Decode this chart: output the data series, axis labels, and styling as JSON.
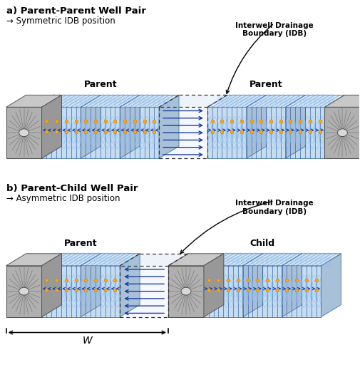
{
  "title_a": "a) Parent-Parent Well Pair",
  "subtitle_a": "→ Symmetric IDB position",
  "title_b": "b) Parent-Child Well Pair",
  "subtitle_b": "→ Asymmetric IDB position",
  "label_parent_a1": "Parent",
  "label_parent_a2": "Parent",
  "label_parent_b": "Parent",
  "label_child_b": "Child",
  "label_idb_a": "Interwell Drainage\nBoundary (IDB)",
  "label_idb_b": "Interwell Drainage\nBoundary (IDB)",
  "label_W": "W",
  "bg_color": "#ffffff",
  "front_blue": "#c5ddf0",
  "front_blue2": "#b8d0e8",
  "top_blue": "#daeaf8",
  "right_face": "#a8c0d8",
  "gray_face": "#b0b0b0",
  "gray_top": "#c8c8c8",
  "gray_right": "#989898",
  "idb_face": "#eef2f8",
  "idb_top": "#e8edf5",
  "blue_line": "#2255aa",
  "arrow_blue": "#1a3a9f",
  "contour_blue": "#3a70cc",
  "contour_light": "#88bbee",
  "orange_dot": "#ffaa00",
  "dashed_color": "#333333",
  "fig_width": 5.05,
  "fig_height": 5.5,
  "dpi": 100
}
